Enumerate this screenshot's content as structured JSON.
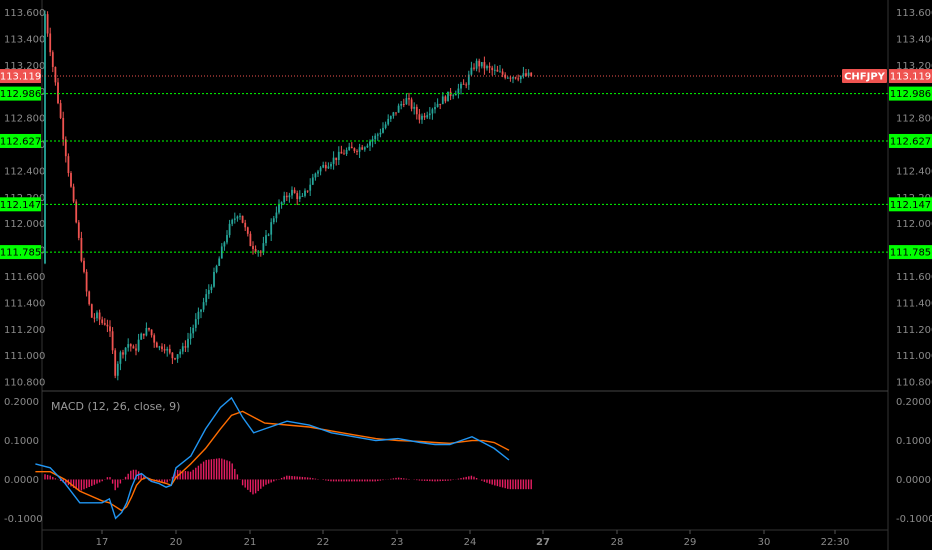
{
  "symbol": "CHFJPY",
  "last_price": "113.119",
  "colors": {
    "background": "#000000",
    "up_candle": "#26a69a",
    "down_candle": "#ef5350",
    "level_line": "#00ff00",
    "price_line": "#ef5350",
    "macd_line": "#2196f3",
    "signal_line": "#ff6d00",
    "histogram": "#e91e63",
    "axis_text": "#8a8a8a"
  },
  "price_levels": [
    "112.986",
    "112.627",
    "112.147",
    "111.785"
  ],
  "macd_title": "MACD (12, 26, close, 9)",
  "chart_data": [
    {
      "type": "candlestick",
      "symbol": "CHFJPY",
      "x_ticks": [
        "17",
        "20",
        "21",
        "22",
        "23",
        "24",
        "27",
        "28",
        "29",
        "30",
        "22:30"
      ],
      "y_ticks": [
        "113.600",
        "113.400",
        "113.200",
        "113.000",
        "112.800",
        "112.600",
        "112.400",
        "112.200",
        "112.000",
        "111.800",
        "111.600",
        "111.400",
        "111.200",
        "111.000",
        "110.800"
      ],
      "ylim": [
        110.74,
        113.68
      ],
      "horizontal_levels": [
        112.986,
        112.627,
        112.147,
        111.785
      ],
      "last_price": 113.119,
      "close_path": [
        [
          16.2,
          111.7
        ],
        [
          16.4,
          111.45
        ],
        [
          16.6,
          111.28
        ],
        [
          16.8,
          111.3
        ],
        [
          17.0,
          111.25
        ],
        [
          17.2,
          111.25
        ],
        [
          17.4,
          111.1
        ],
        [
          17.5,
          110.85
        ],
        [
          17.7,
          111.0
        ],
        [
          17.9,
          111.05
        ],
        [
          18.1,
          111.1
        ],
        [
          18.3,
          111.02
        ],
        [
          18.5,
          111.12
        ],
        [
          18.7,
          111.18
        ],
        [
          18.9,
          111.2
        ],
        [
          19.1,
          111.12
        ],
        [
          19.3,
          111.06
        ],
        [
          19.5,
          111.08
        ],
        [
          19.7,
          111.02
        ],
        [
          19.9,
          110.98
        ],
        [
          20.1,
          111.05
        ],
        [
          20.3,
          111.3
        ],
        [
          20.5,
          111.58
        ],
        [
          20.7,
          111.95
        ],
        [
          20.85,
          112.1
        ],
        [
          21.0,
          111.85
        ],
        [
          21.15,
          111.78
        ],
        [
          21.35,
          112.1
        ],
        [
          21.55,
          112.25
        ],
        [
          21.7,
          112.18
        ],
        [
          21.9,
          112.4
        ],
        [
          22.1,
          112.48
        ],
        [
          22.3,
          112.55
        ],
        [
          22.5,
          112.58
        ],
        [
          22.7,
          112.66
        ],
        [
          22.9,
          112.8
        ],
        [
          23.1,
          112.95
        ],
        [
          23.3,
          112.8
        ],
        [
          23.5,
          112.9
        ],
        [
          23.7,
          112.98
        ],
        [
          23.9,
          113.05
        ],
        [
          24.05,
          113.22
        ],
        [
          24.2,
          113.18
        ],
        [
          24.35,
          113.14
        ],
        [
          24.5,
          113.12
        ]
      ]
    },
    {
      "type": "macd",
      "title": "MACD (12, 26, close, 9)",
      "y_ticks": [
        "0.2000",
        "0.1000",
        "0.0000",
        "-0.1000"
      ],
      "ylim": [
        -0.13,
        0.225
      ],
      "macd": [
        [
          16.1,
          0.04
        ],
        [
          16.3,
          0.03
        ],
        [
          16.5,
          -0.01
        ],
        [
          16.7,
          -0.06
        ],
        [
          17.0,
          -0.06
        ],
        [
          17.3,
          -0.05
        ],
        [
          17.55,
          -0.1
        ],
        [
          17.8,
          -0.085
        ],
        [
          18.0,
          -0.06
        ],
        [
          18.2,
          -0.02
        ],
        [
          18.4,
          0.01
        ],
        [
          18.6,
          0.015
        ],
        [
          18.8,
          0.005
        ],
        [
          19.0,
          -0.005
        ],
        [
          19.3,
          -0.01
        ],
        [
          19.6,
          -0.02
        ],
        [
          19.8,
          -0.015
        ],
        [
          20.0,
          0.03
        ],
        [
          20.2,
          0.06
        ],
        [
          20.4,
          0.13
        ],
        [
          20.6,
          0.185
        ],
        [
          20.75,
          0.21
        ],
        [
          20.9,
          0.16
        ],
        [
          21.05,
          0.12
        ],
        [
          21.2,
          0.13
        ],
        [
          21.5,
          0.15
        ],
        [
          21.8,
          0.14
        ],
        [
          22.1,
          0.12
        ],
        [
          22.4,
          0.11
        ],
        [
          22.7,
          0.1
        ],
        [
          23.0,
          0.105
        ],
        [
          23.3,
          0.095
        ],
        [
          23.5,
          0.09
        ],
        [
          23.7,
          0.09
        ],
        [
          24.0,
          0.11
        ],
        [
          24.15,
          0.095
        ],
        [
          24.3,
          0.08
        ],
        [
          24.5,
          0.05
        ]
      ],
      "signal": [
        [
          16.1,
          0.02
        ],
        [
          16.3,
          0.02
        ],
        [
          16.5,
          0.0
        ],
        [
          16.7,
          -0.03
        ],
        [
          17.0,
          -0.055
        ],
        [
          17.3,
          -0.06
        ],
        [
          17.55,
          -0.07
        ],
        [
          17.8,
          -0.08
        ],
        [
          18.0,
          -0.07
        ],
        [
          18.2,
          -0.045
        ],
        [
          18.4,
          -0.015
        ],
        [
          18.6,
          0.0
        ],
        [
          18.8,
          0.005
        ],
        [
          19.0,
          0.0
        ],
        [
          19.3,
          -0.005
        ],
        [
          19.6,
          -0.01
        ],
        [
          19.8,
          -0.015
        ],
        [
          20.0,
          0.005
        ],
        [
          20.2,
          0.04
        ],
        [
          20.4,
          0.08
        ],
        [
          20.6,
          0.13
        ],
        [
          20.75,
          0.165
        ],
        [
          20.9,
          0.175
        ],
        [
          21.05,
          0.16
        ],
        [
          21.2,
          0.145
        ],
        [
          21.5,
          0.14
        ],
        [
          21.8,
          0.135
        ],
        [
          22.1,
          0.125
        ],
        [
          22.4,
          0.115
        ],
        [
          22.7,
          0.105
        ],
        [
          23.0,
          0.1
        ],
        [
          23.3,
          0.098
        ],
        [
          23.5,
          0.095
        ],
        [
          23.7,
          0.093
        ],
        [
          24.0,
          0.1
        ],
        [
          24.15,
          0.1
        ],
        [
          24.3,
          0.095
        ],
        [
          24.5,
          0.075
        ]
      ]
    }
  ]
}
